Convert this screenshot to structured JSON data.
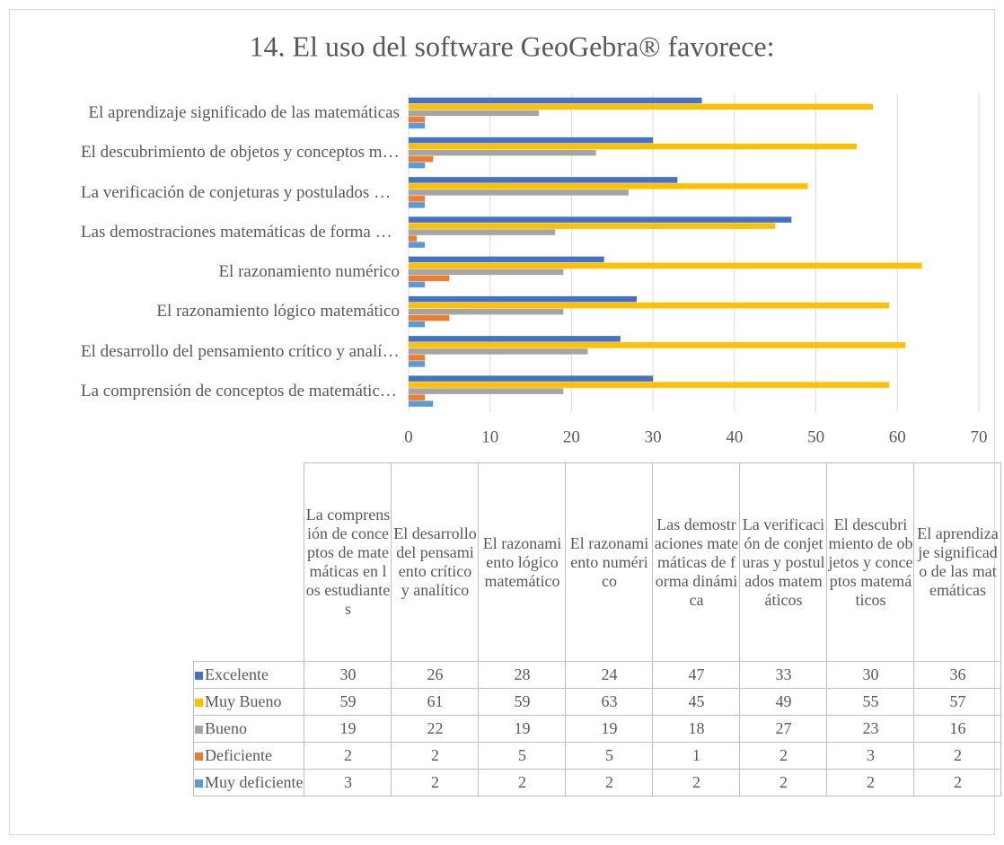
{
  "chart_data": {
    "type": "bar",
    "orientation": "horizontal",
    "title": "14. El uso del software GeoGebra® favorece:",
    "categories": [
      "La comprensión de conceptos de matemáticas en los estudiantes",
      "El desarrollo del pensamiento crítico y analítico",
      "El razonamiento lógico matemático",
      "El razonamiento numérico",
      "Las demostraciones matemáticas de forma dinámica",
      "La verificación de conjeturas y postulados matemáticos",
      "El descubrimiento de objetos y conceptos matemáticos",
      "El aprendizaje significado de las matemáticas"
    ],
    "series": [
      {
        "name": "Excelente",
        "color": "#4472c4",
        "values": [
          30,
          26,
          28,
          24,
          47,
          33,
          30,
          36
        ]
      },
      {
        "name": "Muy Bueno",
        "color": "#ffc000",
        "values": [
          59,
          61,
          59,
          63,
          45,
          49,
          55,
          57
        ]
      },
      {
        "name": "Bueno",
        "color": "#a5a5a5",
        "values": [
          19,
          22,
          19,
          19,
          18,
          27,
          23,
          16
        ]
      },
      {
        "name": "Deficiente",
        "color": "#ed7d31",
        "values": [
          2,
          2,
          5,
          5,
          1,
          2,
          3,
          2
        ]
      },
      {
        "name": "Muy deficiente",
        "color": "#5b9bd5",
        "values": [
          3,
          2,
          2,
          2,
          2,
          2,
          2,
          2
        ]
      }
    ],
    "xlim": [
      0,
      70
    ],
    "xticks": [
      0,
      10,
      20,
      30,
      40,
      50,
      60,
      70
    ],
    "grid": true,
    "data_table": true
  }
}
